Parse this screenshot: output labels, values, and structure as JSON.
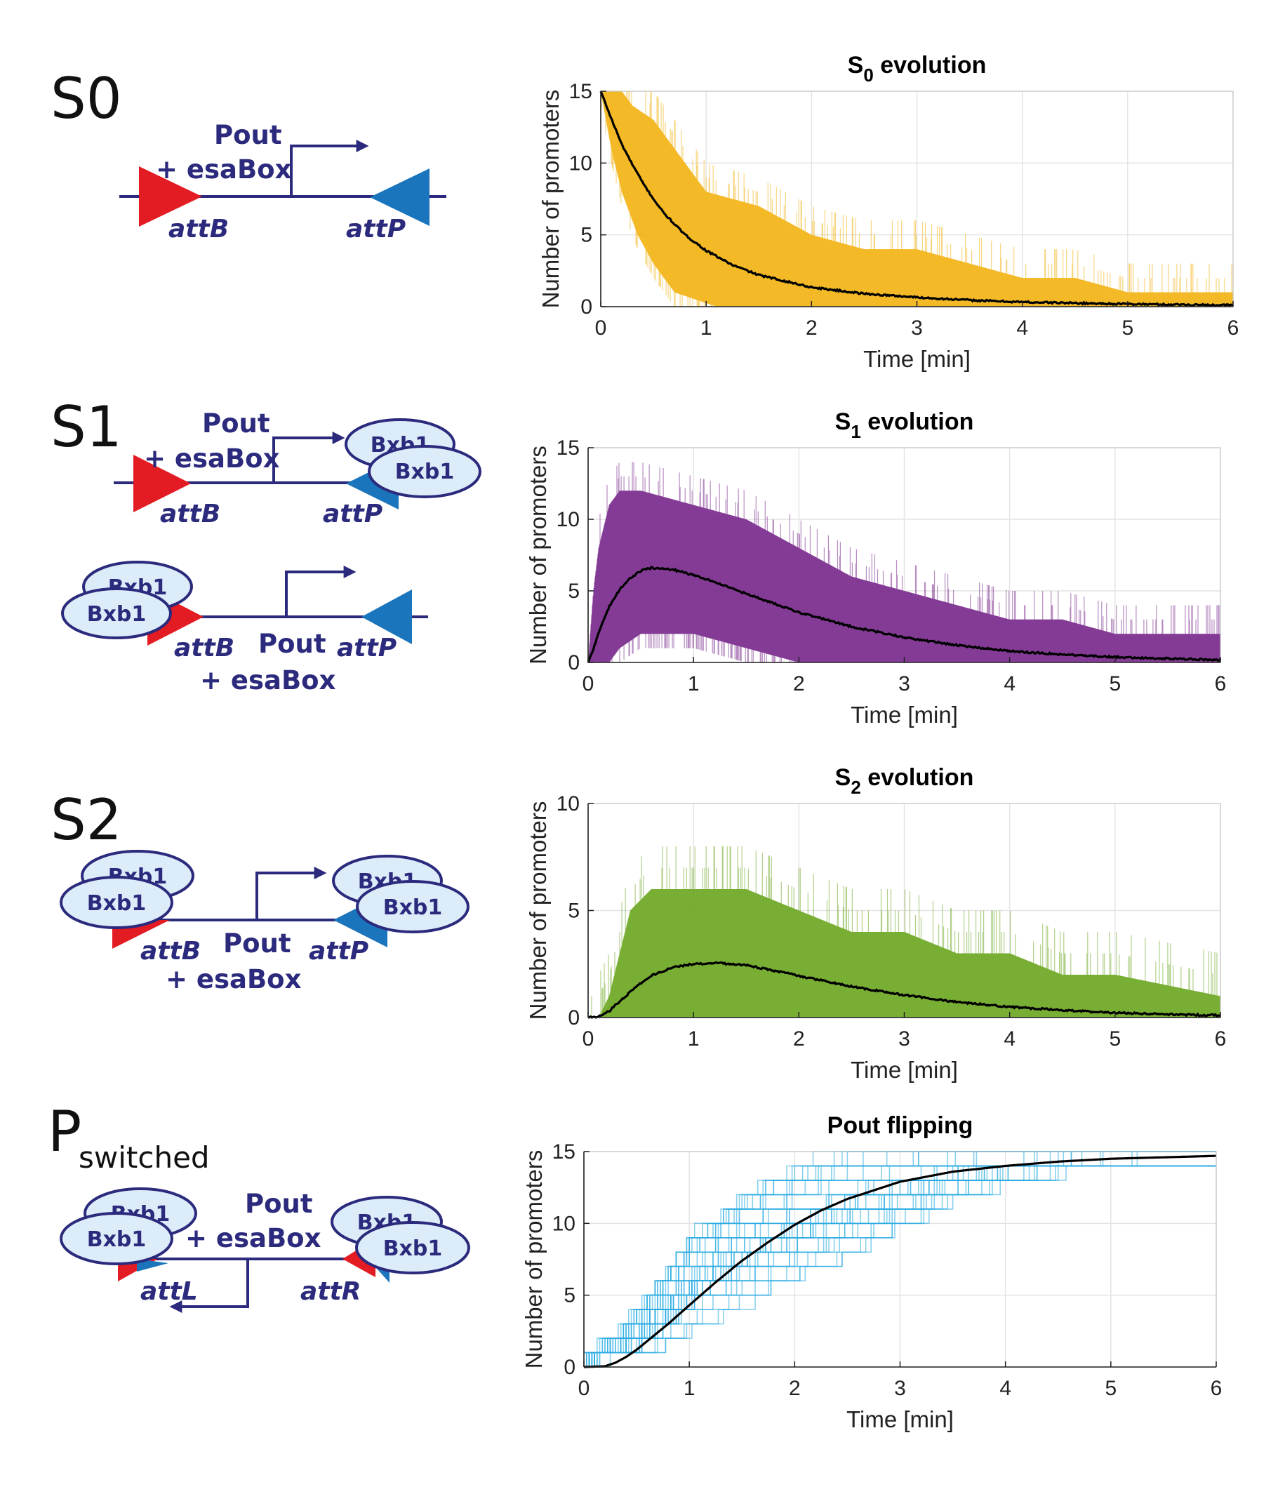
{
  "diagrams": [
    {
      "label_main": "S0",
      "label_sub": "",
      "promoter": "Pout",
      "box": "+ esaBox",
      "left_site": "attB",
      "right_site": "attP",
      "protein": "Bxb1"
    },
    {
      "label_main": "S1",
      "label_sub": "",
      "promoter": "Pout",
      "box": "+ esaBox",
      "left_site": "attB",
      "right_site": "attP",
      "protein": "Bxb1"
    },
    {
      "label_main": "S2",
      "label_sub": "",
      "promoter": "Pout",
      "box": "+ esaBox",
      "left_site": "attB",
      "right_site": "attP",
      "protein": "Bxb1"
    },
    {
      "label_main": "P",
      "label_sub": "switched",
      "promoter": "Pout",
      "box": "+ esaBox",
      "left_site": "attL",
      "right_site": "attR",
      "protein": "Bxb1"
    }
  ],
  "colors": {
    "dna": "#2b2a7d",
    "attB": "#e31b23",
    "attP": "#1b75bc",
    "protein_fill": "#dcecf8",
    "mean_line": "#000000",
    "s0_band": "#f2b418",
    "s1_band": "#7b2d8e",
    "s2_band": "#6fa826",
    "pout_traces": "#29abe2"
  },
  "chart_data": [
    {
      "type": "area",
      "title_main": "S",
      "title_sub": "0",
      "title_rest": " evolution",
      "xlabel": "Time [min]",
      "ylabel": "Number of promoters",
      "xlim": [
        0,
        6
      ],
      "ylim": [
        0,
        15
      ],
      "xticks": [
        "0",
        "1",
        "2",
        "3",
        "4",
        "5",
        "6"
      ],
      "yticks": [
        "0",
        "5",
        "10",
        "15"
      ],
      "grid": true,
      "series": [
        {
          "role": "mean",
          "x": [
            0,
            0.1,
            0.2,
            0.3,
            0.4,
            0.5,
            0.6,
            0.8,
            1.0,
            1.25,
            1.5,
            2.0,
            2.5,
            3.0,
            3.5,
            4.0,
            4.5,
            5.0,
            5.5,
            6.0
          ],
          "values": [
            15,
            13.1,
            11.3,
            9.9,
            8.6,
            7.5,
            6.5,
            5.0,
            3.9,
            2.9,
            2.2,
            1.35,
            0.9,
            0.65,
            0.45,
            0.32,
            0.25,
            0.18,
            0.14,
            0.1
          ]
        },
        {
          "role": "upper_band",
          "x": [
            0,
            0.2,
            0.3,
            0.5,
            0.6,
            0.8,
            1.0,
            1.5,
            2.0,
            2.5,
            3.0,
            3.5,
            4.0,
            4.5,
            5.0,
            6.0
          ],
          "values": [
            15,
            15,
            14,
            13,
            12,
            10,
            8,
            7,
            5,
            4,
            4,
            3,
            2,
            2,
            1,
            1
          ]
        },
        {
          "role": "lower_band",
          "x": [
            0,
            0.1,
            0.2,
            0.35,
            0.5,
            0.7,
            0.9,
            1.1,
            6.0
          ],
          "values": [
            15,
            11,
            8,
            5,
            3,
            1,
            0.5,
            0,
            0
          ]
        }
      ]
    },
    {
      "type": "area",
      "title_main": "S",
      "title_sub": "1",
      "title_rest": " evolution",
      "xlabel": "Time [min]",
      "ylabel": "Number of promoters",
      "xlim": [
        0,
        6
      ],
      "ylim": [
        0,
        15
      ],
      "xticks": [
        "0",
        "1",
        "2",
        "3",
        "4",
        "5",
        "6"
      ],
      "yticks": [
        "0",
        "5",
        "10",
        "15"
      ],
      "grid": true,
      "series": [
        {
          "role": "mean",
          "x": [
            0,
            0.05,
            0.1,
            0.2,
            0.3,
            0.4,
            0.5,
            0.6,
            0.8,
            1.0,
            1.25,
            1.5,
            2.0,
            2.5,
            3.0,
            3.5,
            4.0,
            4.5,
            5.0,
            5.5,
            6.0
          ],
          "values": [
            0,
            0.9,
            2.1,
            3.9,
            5.1,
            5.9,
            6.4,
            6.6,
            6.5,
            6.1,
            5.5,
            4.8,
            3.5,
            2.5,
            1.75,
            1.2,
            0.8,
            0.55,
            0.38,
            0.27,
            0.18
          ]
        },
        {
          "role": "upper_band",
          "x": [
            0,
            0.05,
            0.1,
            0.2,
            0.3,
            0.5,
            1.0,
            1.5,
            2.0,
            2.5,
            3.0,
            3.5,
            4.0,
            4.5,
            5.0,
            6.0
          ],
          "values": [
            0,
            5,
            8,
            11,
            12,
            12,
            11,
            10,
            8,
            6,
            5,
            4,
            3,
            3,
            2,
            2
          ]
        },
        {
          "role": "lower_band",
          "x": [
            0,
            0.2,
            0.3,
            0.5,
            1.0,
            1.5,
            2.0,
            6.0
          ],
          "values": [
            0,
            0,
            1,
            2,
            2,
            1,
            0,
            0
          ]
        }
      ]
    },
    {
      "type": "area",
      "title_main": "S",
      "title_sub": "2",
      "title_rest": " evolution",
      "xlabel": "Time [min]",
      "ylabel": "Number of promoters",
      "xlim": [
        0,
        6
      ],
      "ylim": [
        0,
        10
      ],
      "xticks": [
        "0",
        "1",
        "2",
        "3",
        "4",
        "5",
        "6"
      ],
      "yticks": [
        "0",
        "5",
        "10"
      ],
      "grid": true,
      "series": [
        {
          "role": "mean",
          "x": [
            0,
            0.1,
            0.2,
            0.3,
            0.4,
            0.5,
            0.6,
            0.8,
            1.0,
            1.2,
            1.5,
            2.0,
            2.5,
            3.0,
            3.5,
            4.0,
            4.5,
            5.0,
            5.5,
            6.0
          ],
          "values": [
            0,
            0.05,
            0.3,
            0.75,
            1.2,
            1.6,
            1.95,
            2.35,
            2.5,
            2.55,
            2.45,
            1.95,
            1.45,
            1.05,
            0.72,
            0.5,
            0.34,
            0.22,
            0.15,
            0.1
          ]
        },
        {
          "role": "upper_band",
          "x": [
            0,
            0.1,
            0.2,
            0.3,
            0.4,
            0.6,
            0.8,
            1.5,
            2.0,
            2.5,
            3.0,
            3.5,
            4.0,
            4.5,
            5.0,
            6.0
          ],
          "values": [
            0,
            0,
            1,
            3,
            5,
            6,
            6,
            6,
            5,
            4,
            4,
            3,
            3,
            2,
            2,
            1
          ]
        },
        {
          "role": "lower_band",
          "x": [
            0,
            6.0
          ],
          "values": [
            0,
            0
          ]
        }
      ]
    },
    {
      "type": "line",
      "title_main": "Pout flipping",
      "title_sub": "",
      "title_rest": "",
      "xlabel": "Time [min]",
      "ylabel": "Number of promoters",
      "xlim": [
        0,
        6
      ],
      "ylim": [
        0,
        15
      ],
      "xticks": [
        "0",
        "1",
        "2",
        "3",
        "4",
        "5",
        "6"
      ],
      "yticks": [
        "0",
        "5",
        "10",
        "15"
      ],
      "grid": true,
      "series": [
        {
          "role": "mean",
          "x": [
            0,
            0.2,
            0.3,
            0.4,
            0.5,
            0.6,
            0.8,
            1.0,
            1.25,
            1.5,
            1.75,
            2.0,
            2.25,
            2.5,
            3.0,
            3.5,
            4.0,
            4.5,
            5.0,
            5.5,
            6.0
          ],
          "values": [
            0,
            0.05,
            0.3,
            0.7,
            1.2,
            1.8,
            3.0,
            4.3,
            5.9,
            7.4,
            8.7,
            9.9,
            10.9,
            11.7,
            12.9,
            13.6,
            14.0,
            14.3,
            14.5,
            14.6,
            14.7
          ]
        },
        {
          "role": "lower_envelope",
          "x": [
            0,
            0.5,
            0.7,
            1.0,
            1.5,
            2.0,
            2.5,
            3.0,
            3.5,
            4.0,
            4.5,
            6.0
          ],
          "values": [
            0,
            0,
            1,
            2,
            3.5,
            5,
            7,
            9,
            11,
            12,
            13,
            13
          ]
        },
        {
          "role": "upper_envelope",
          "x": [
            0,
            0.1,
            0.3,
            0.5,
            0.8,
            1.0,
            1.5,
            2.0,
            2.5,
            6.0
          ],
          "values": [
            0,
            1,
            2,
            4,
            7,
            9,
            12,
            14,
            15,
            15
          ]
        }
      ]
    }
  ]
}
